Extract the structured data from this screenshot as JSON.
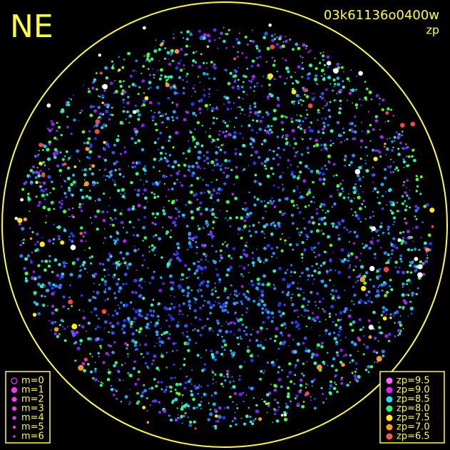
{
  "header": {
    "direction": "NE",
    "frame_id": "03k61136o0400w",
    "mode": "zp"
  },
  "magnitude_legend": [
    "m=0",
    "m=1",
    "m=2",
    "m=3",
    "m=4",
    "m=5",
    "m=6"
  ],
  "zp_legend": [
    {
      "label": "zp=9.5",
      "color": "#ff66ff"
    },
    {
      "label": "zp=9.0",
      "color": "#dd22ff"
    },
    {
      "label": "zp=8.5",
      "color": "#22ddff"
    },
    {
      "label": "zp=8.0",
      "color": "#22ff66"
    },
    {
      "label": "zp=7.5",
      "color": "#ffee00"
    },
    {
      "label": "zp=7.0",
      "color": "#ff9922"
    },
    {
      "label": "zp=6.5",
      "color": "#ff5555"
    }
  ]
}
